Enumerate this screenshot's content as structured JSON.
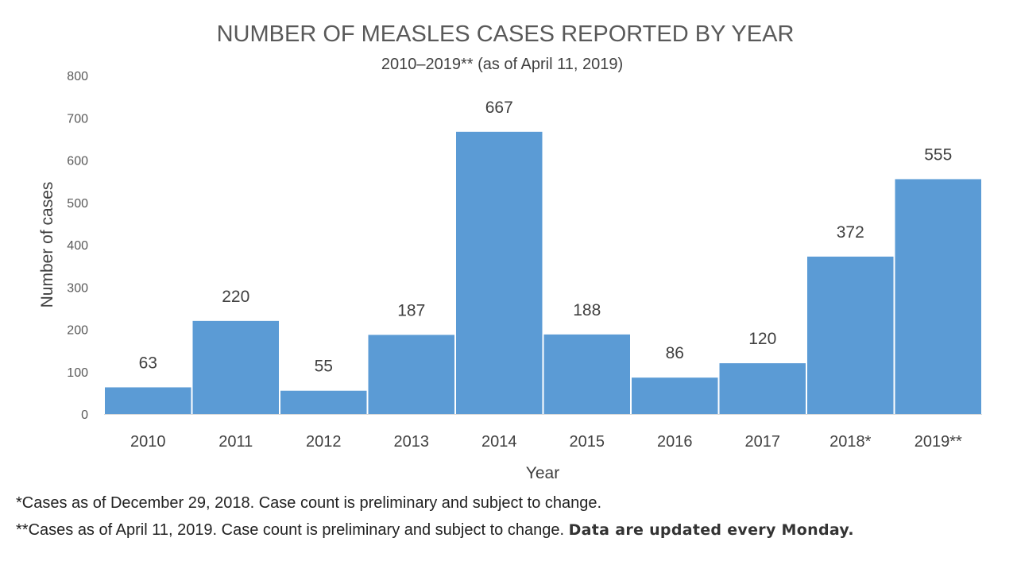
{
  "chart_data": {
    "type": "bar",
    "title": "NUMBER OF MEASLES CASES REPORTED BY YEAR",
    "subtitle": "2010–2019** (as of April 11, 2019)",
    "xlabel": "Year",
    "ylabel": "Number of cases",
    "categories": [
      "2010",
      "2011",
      "2012",
      "2013",
      "2014",
      "2015",
      "2016",
      "2017",
      "2018*",
      "2019**"
    ],
    "values": [
      63,
      220,
      55,
      187,
      667,
      188,
      86,
      120,
      372,
      555
    ],
    "ylim": [
      0,
      800
    ],
    "yticks": [
      0,
      100,
      200,
      300,
      400,
      500,
      600,
      700,
      800
    ],
    "grid": false,
    "legend": "none",
    "bar_color": "#5B9BD5"
  },
  "footnotes": {
    "line1": "*Cases as of December 29, 2018. Case count is preliminary and subject to change.",
    "line2": "**Cases as of April 11, 2019. Case count is preliminary and subject to change.",
    "line2_emphasis": "Data are updated every Monday."
  }
}
